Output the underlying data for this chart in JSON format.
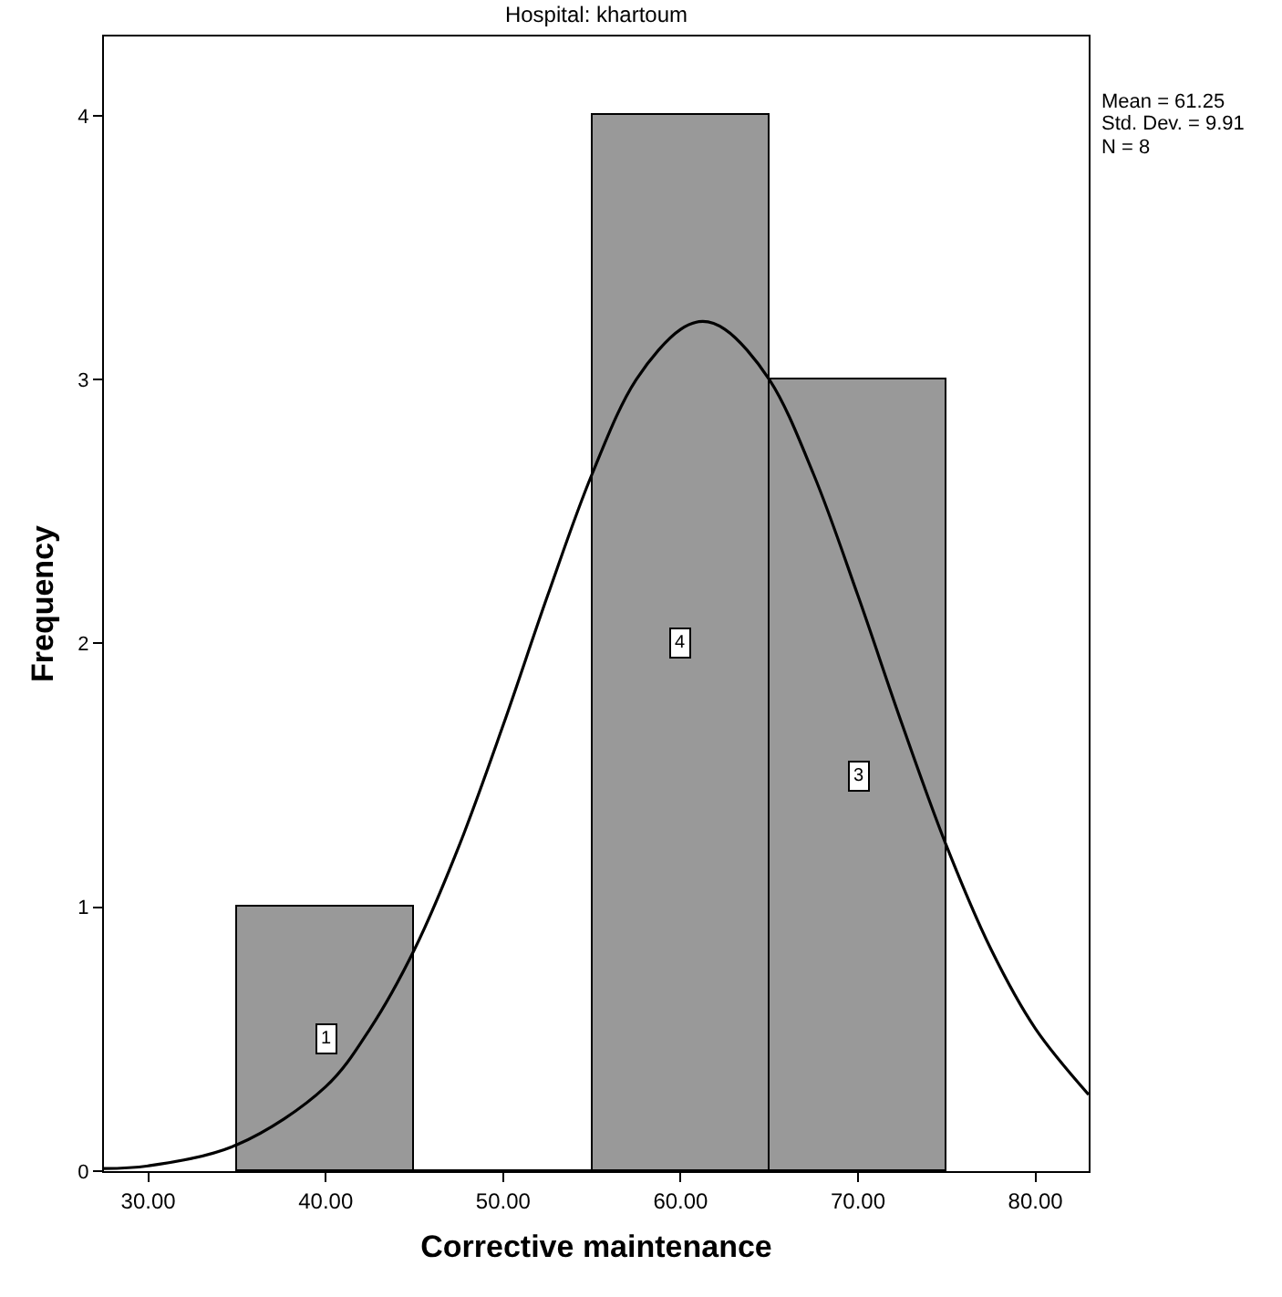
{
  "chart_data": {
    "type": "histogram",
    "title": "Hospital: khartoum",
    "xlabel": "Corrective maintenance",
    "ylabel": "Frequency",
    "bins": [
      35,
      45,
      55,
      65,
      75
    ],
    "values": [
      1,
      0,
      4,
      3
    ],
    "color": "#999999",
    "value_labels": [
      "1",
      null,
      "4",
      "3"
    ],
    "series": [
      {
        "type": "line",
        "color": "#000000",
        "x": [
          27.5,
          30,
          35,
          40,
          42.5,
          45,
          47.5,
          50,
          52.5,
          55,
          57.5,
          60,
          61.25,
          62.5,
          65,
          67.5,
          70,
          72.5,
          75,
          77.5,
          80,
          83
        ],
        "values": [
          0.01,
          0.02,
          0.1,
          0.32,
          0.54,
          0.84,
          1.23,
          1.69,
          2.18,
          2.64,
          3.0,
          3.19,
          3.22,
          3.19,
          3.0,
          2.64,
          2.18,
          1.69,
          1.23,
          0.84,
          0.54,
          0.29
        ]
      }
    ],
    "xlim": [
      27.5,
      83
    ],
    "ylim": [
      0,
      4.3
    ],
    "xticks": [
      {
        "value": 30,
        "label": "30.00"
      },
      {
        "value": 40,
        "label": "40.00"
      },
      {
        "value": 50,
        "label": "50.00"
      },
      {
        "value": 60,
        "label": "60.00"
      },
      {
        "value": 70,
        "label": "70.00"
      },
      {
        "value": 80,
        "label": "80.00"
      }
    ],
    "yticks": [
      0,
      1,
      2,
      3,
      4
    ],
    "annotations": [
      "Mean = 61.25",
      "Std. Dev. = 9.91",
      "N = 8"
    ],
    "grid": false,
    "legend": false
  }
}
